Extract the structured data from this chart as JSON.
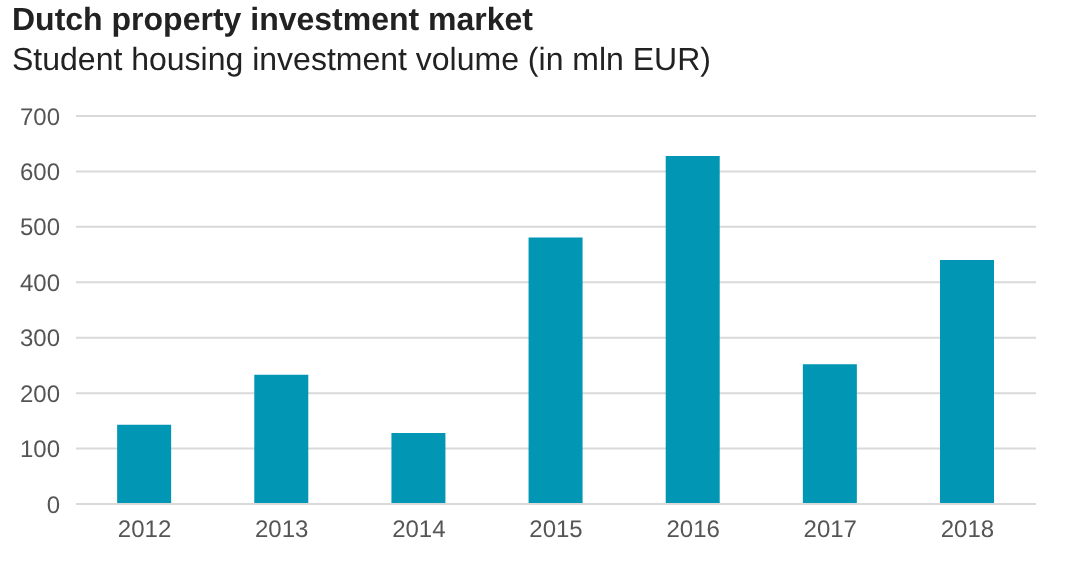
{
  "chart_data": {
    "type": "bar",
    "title": "Dutch property investment market",
    "subtitle": "Student housing investment volume (in mln EUR)",
    "categories": [
      "2012",
      "2013",
      "2014",
      "2015",
      "2016",
      "2017",
      "2018"
    ],
    "values": [
      143,
      233,
      128,
      481,
      628,
      252,
      440
    ],
    "color": "#0096b4",
    "ylim": [
      0,
      700
    ],
    "yticks": [
      0,
      100,
      200,
      300,
      400,
      500,
      600,
      700
    ],
    "grid": "y"
  }
}
